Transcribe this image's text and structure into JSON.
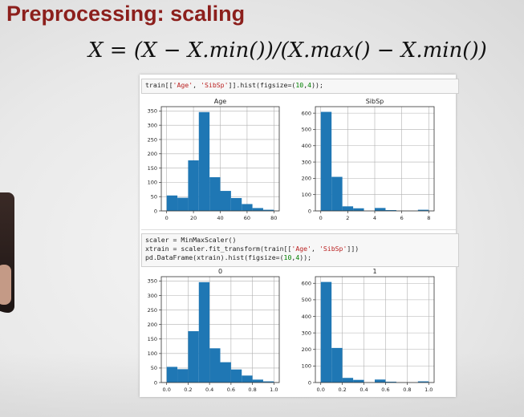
{
  "slide": {
    "title": "Preprocessing: scaling",
    "formula": "X = (X − X.min())/(X.max() − X.min())"
  },
  "cells": {
    "code1": {
      "pre": "train[[",
      "s1": "'Age'",
      "mid": ", ",
      "s2": "'SibSp'",
      "post": "]].hist(figsize=(",
      "n1": "10",
      "comma": ",",
      "n2": "4",
      "end": "));"
    },
    "code2": {
      "line1": "scaler = MinMaxScaler()",
      "line2_pre": "xtrain = scaler.fit_transform(train[[",
      "line2_s1": "'Age'",
      "line2_mid": ", ",
      "line2_s2": "'SibSp'",
      "line2_post": "]])",
      "line3_pre": "pd.DataFrame(xtrain).hist(figsize=(",
      "line3_n1": "10",
      "line3_comma": ",",
      "line3_n2": "4",
      "line3_end": "));"
    }
  },
  "chart_data": [
    {
      "type": "bar",
      "title": "Age",
      "x": [
        0,
        8,
        16,
        24,
        32,
        40,
        48,
        56,
        64,
        72
      ],
      "bin_width": 8,
      "values": [
        54,
        46,
        177,
        346,
        118,
        70,
        45,
        24,
        10,
        4
      ],
      "xlim": [
        -4,
        84
      ],
      "ylim": [
        0,
        365
      ],
      "xticks": [
        0,
        20,
        40,
        60,
        80
      ],
      "yticks": [
        0,
        50,
        100,
        150,
        200,
        250,
        300,
        350
      ],
      "grid": true,
      "color": "#1f77b4"
    },
    {
      "type": "bar",
      "title": "SibSp",
      "x": [
        0,
        0.8,
        1.6,
        2.4,
        3.2,
        4.0,
        4.8,
        5.6,
        6.4,
        7.2
      ],
      "bin_width": 0.8,
      "values": [
        608,
        209,
        28,
        16,
        0,
        18,
        5,
        0,
        0,
        7
      ],
      "xlim": [
        -0.4,
        8.4
      ],
      "ylim": [
        0,
        640
      ],
      "xticks": [
        0,
        2,
        4,
        6,
        8
      ],
      "yticks": [
        0,
        100,
        200,
        300,
        400,
        500,
        600
      ],
      "grid": true,
      "color": "#1f77b4"
    },
    {
      "type": "bar",
      "title": "0",
      "x": [
        0,
        0.1,
        0.2,
        0.3,
        0.4,
        0.5,
        0.6,
        0.7,
        0.8,
        0.9
      ],
      "bin_width": 0.1,
      "values": [
        54,
        46,
        177,
        346,
        118,
        70,
        45,
        24,
        10,
        4
      ],
      "xlim": [
        -0.05,
        1.05
      ],
      "ylim": [
        0,
        365
      ],
      "xticks": [
        0.0,
        0.2,
        0.4,
        0.6,
        0.8,
        1.0
      ],
      "yticks": [
        0,
        50,
        100,
        150,
        200,
        250,
        300,
        350
      ],
      "grid": true,
      "color": "#1f77b4"
    },
    {
      "type": "bar",
      "title": "1",
      "x": [
        0,
        0.1,
        0.2,
        0.3,
        0.4,
        0.5,
        0.6,
        0.7,
        0.8,
        0.9
      ],
      "bin_width": 0.1,
      "values": [
        608,
        209,
        28,
        16,
        0,
        18,
        5,
        0,
        0,
        7
      ],
      "xlim": [
        -0.05,
        1.05
      ],
      "ylim": [
        0,
        640
      ],
      "xticks": [
        0.0,
        0.2,
        0.4,
        0.6,
        0.8,
        1.0
      ],
      "yticks": [
        0,
        100,
        200,
        300,
        400,
        500,
        600
      ],
      "grid": true,
      "color": "#1f77b4"
    }
  ]
}
